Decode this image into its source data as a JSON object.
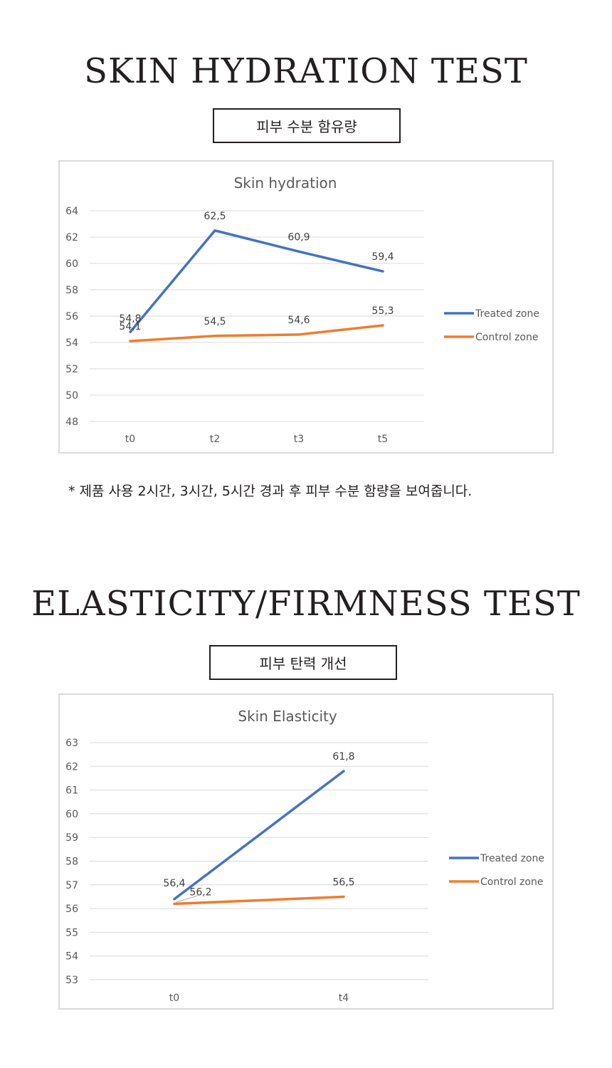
{
  "sections": [
    {
      "title": "SKIN HYDRATION TEST",
      "subtitle": "피부 수분 함유량"
    },
    {
      "title": "ELASTICITY/FIRMNESS TEST",
      "subtitle": "피부 탄력 개선"
    }
  ],
  "footnote": "* 제품 사용 2시간, 3시간, 5시간 경과 후 피부 수분 함량을 보여줍니다.",
  "chart_data": [
    {
      "type": "line",
      "title": "Skin hydration",
      "categories": [
        "t0",
        "t2",
        "t3",
        "t5"
      ],
      "ylim": [
        48,
        64
      ],
      "yticks": [
        48,
        50,
        52,
        54,
        56,
        58,
        60,
        62,
        64
      ],
      "grid": true,
      "legend": "right",
      "series": [
        {
          "name": "Treated zone",
          "color": "#4472c4",
          "values": [
            54.8,
            62.5,
            60.9,
            59.4
          ],
          "labels": [
            "54,8",
            "62,5",
            "60,9",
            "59,4"
          ]
        },
        {
          "name": "Control zone",
          "color": "#ed7d31",
          "values": [
            54.1,
            54.5,
            54.6,
            55.3
          ],
          "labels": [
            "54,1",
            "54,5",
            "54,6",
            "55,3"
          ]
        }
      ]
    },
    {
      "type": "line",
      "title": "Skin Elasticity",
      "categories": [
        "t0",
        "t4"
      ],
      "ylim": [
        53,
        63
      ],
      "yticks": [
        53,
        54,
        55,
        56,
        57,
        58,
        59,
        60,
        61,
        62,
        63
      ],
      "grid": true,
      "legend": "right",
      "series": [
        {
          "name": "Treated zone",
          "color": "#4472c4",
          "values": [
            56.4,
            61.8
          ],
          "labels": [
            "56,4",
            "61,8"
          ]
        },
        {
          "name": "Control zone",
          "color": "#ed7d31",
          "values": [
            56.2,
            56.5
          ],
          "labels": [
            "56,2",
            "56,5"
          ]
        }
      ]
    }
  ]
}
